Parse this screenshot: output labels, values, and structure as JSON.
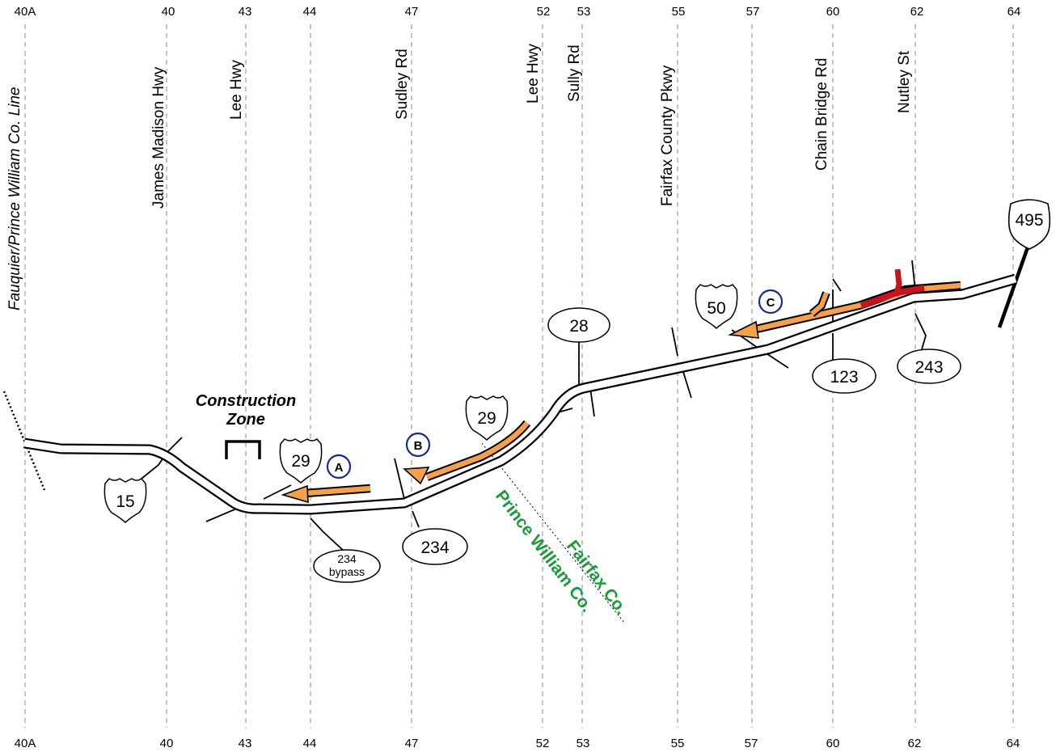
{
  "exits": [
    {
      "id": "40A",
      "road": "Fauquier/Prince William Co. Line",
      "italic": true
    },
    {
      "id": "40",
      "road": "James Madison Hwy"
    },
    {
      "id": "43",
      "road": "Lee Hwy"
    },
    {
      "id": "44",
      "road": ""
    },
    {
      "id": "47",
      "road": "Sudley Rd"
    },
    {
      "id": "52",
      "road": "Lee Hwy"
    },
    {
      "id": "53",
      "road": "Sully Rd"
    },
    {
      "id": "55",
      "road": "Fairfax County Pkwy"
    },
    {
      "id": "57",
      "road": ""
    },
    {
      "id": "60",
      "road": "Chain Bridge Rd"
    },
    {
      "id": "62",
      "road": "Nutley St"
    },
    {
      "id": "64",
      "road": ""
    }
  ],
  "shields": {
    "interstate": "495",
    "us": [
      "15",
      "29",
      "29",
      "50"
    ],
    "state": [
      "28",
      "123",
      "243",
      "234"
    ],
    "bypass": [
      "234",
      "bypass"
    ]
  },
  "construction": {
    "line1": "Construction",
    "line2": "Zone"
  },
  "markers": [
    "A",
    "B",
    "C"
  ],
  "counties": {
    "prince_william": "Prince William Co.",
    "fairfax": "Fairfax Co."
  },
  "colors": {
    "congestion_moderate": "#f5a04a",
    "congestion_heavy": "#c8141e",
    "county_label": "#1a9a3a",
    "marker_ring": "#1b2a8f"
  }
}
